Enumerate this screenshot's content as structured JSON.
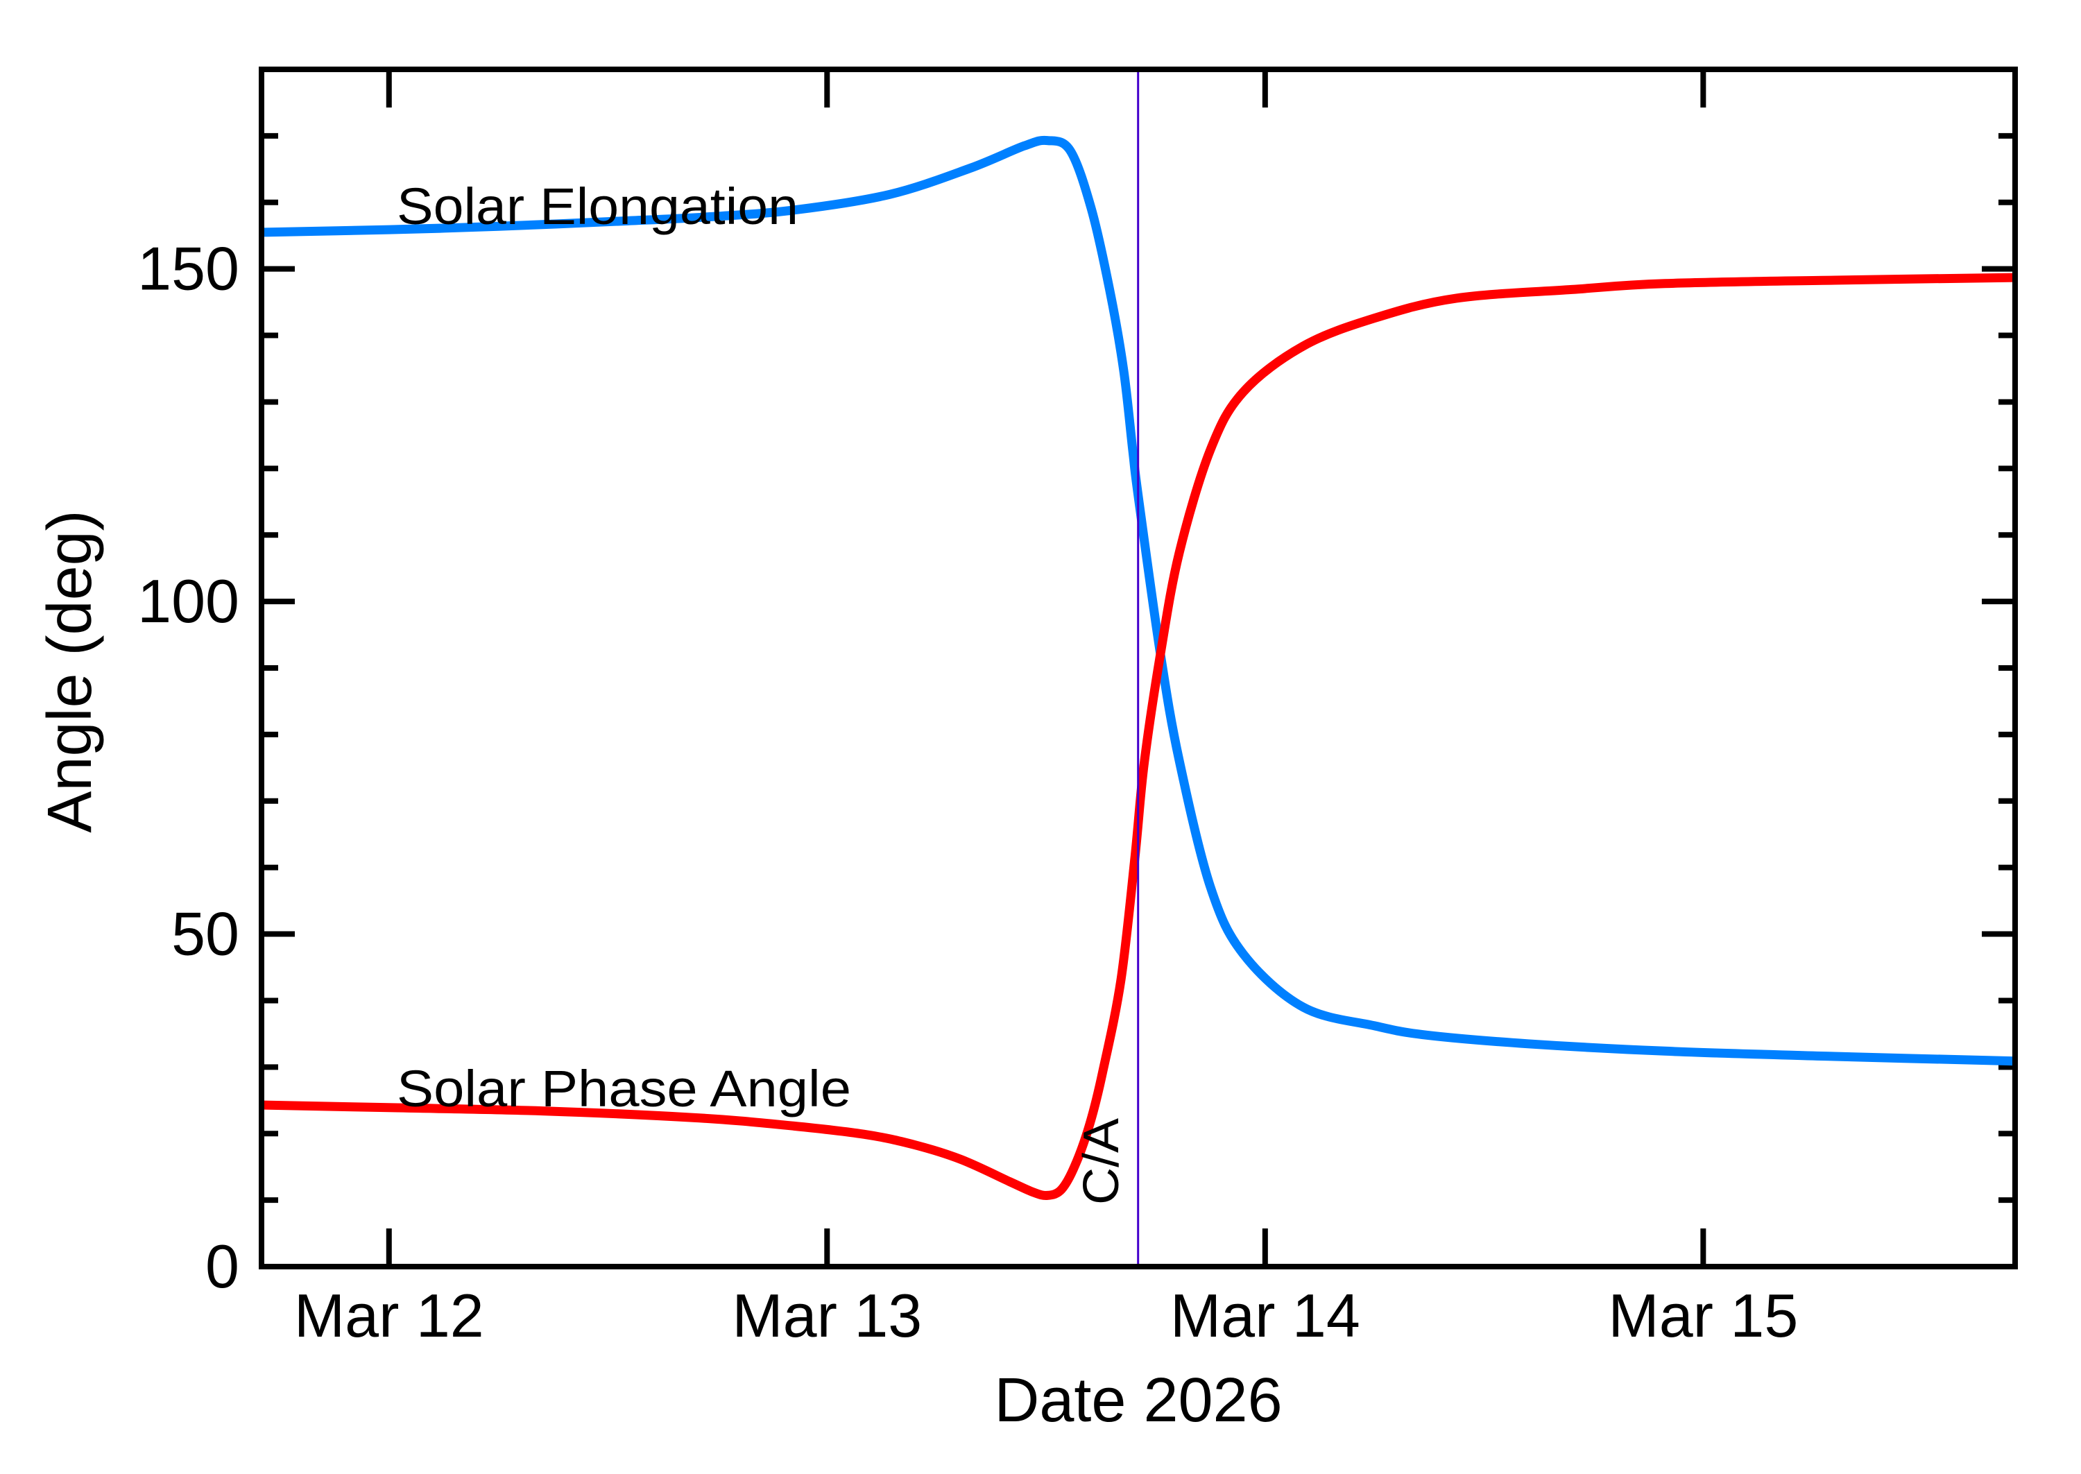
{
  "chart_data": {
    "type": "line",
    "title": "",
    "xlabel": "Date 2026",
    "ylabel": "Angle (deg)",
    "xlim": [
      11.709,
      15.712
    ],
    "ylim": [
      0,
      180
    ],
    "x_unit": "day of March 2026 (fractional)",
    "x_ticks": [
      {
        "value": 12,
        "label": "Mar 12"
      },
      {
        "value": 13,
        "label": "Mar 13"
      },
      {
        "value": 14,
        "label": "Mar 14"
      },
      {
        "value": 15,
        "label": "Mar 15"
      }
    ],
    "x_minor_ticks": [],
    "y_ticks": [
      {
        "value": 0,
        "label": "0"
      },
      {
        "value": 50,
        "label": "50"
      },
      {
        "value": 100,
        "label": "100"
      },
      {
        "value": 150,
        "label": "150"
      }
    ],
    "y_minor_step": 10,
    "grid": false,
    "legend": "inline labels",
    "annotations": [
      {
        "type": "vline",
        "x": 13.71,
        "label": "C/A",
        "color": "#4400CC",
        "meaning": "close approach"
      }
    ],
    "series": [
      {
        "name": "Solar Elongation",
        "color": "#0080FF",
        "label_pos": {
          "x": 11.95,
          "y": 155
        },
        "x": [
          11.709,
          12.0,
          12.25,
          12.537,
          12.75,
          12.931,
          13.143,
          13.325,
          13.45,
          13.503,
          13.555,
          13.603,
          13.645,
          13.677,
          13.698,
          13.71,
          13.761,
          13.804,
          13.875,
          13.95,
          14.087,
          14.25,
          14.369,
          14.6,
          14.912,
          15.3,
          15.712
        ],
        "values": [
          155.5,
          155.9,
          156.4,
          157.2,
          157.9,
          158.9,
          161.2,
          165.1,
          168.5,
          169.3,
          167.8,
          159.1,
          146.9,
          134.8,
          122.6,
          116.0,
          92.1,
          76.1,
          57.1,
          47.0,
          39.0,
          36.2,
          34.8,
          33.5,
          32.4,
          31.6,
          30.9
        ]
      },
      {
        "name": "Solar Phase Angle",
        "color": "#FF0000",
        "label_pos": {
          "x": 11.95,
          "y": 24
        },
        "x": [
          11.709,
          12.0,
          12.35,
          12.694,
          12.9,
          13.084,
          13.2,
          13.306,
          13.416,
          13.47,
          13.503,
          13.535,
          13.566,
          13.6,
          13.629,
          13.671,
          13.703,
          13.724,
          13.761,
          13.804,
          13.875,
          13.95,
          14.087,
          14.25,
          14.437,
          14.7,
          14.912,
          15.3,
          15.712
        ],
        "values": [
          24.3,
          23.9,
          23.4,
          22.4,
          21.3,
          19.9,
          18.3,
          16.1,
          12.8,
          11.2,
          10.7,
          11.6,
          15.2,
          21.5,
          29.2,
          43.2,
          61.7,
          75.7,
          92.1,
          107.3,
          122.8,
          131.5,
          138.4,
          142.6,
          145.6,
          146.9,
          147.8,
          148.3,
          148.7
        ]
      }
    ]
  },
  "plot": {
    "xlabel": "Date 2026",
    "ylabel": "Angle (deg)",
    "ca_label": "C/A",
    "series_labels": [
      "Solar Elongation",
      "Solar Phase Angle"
    ]
  }
}
